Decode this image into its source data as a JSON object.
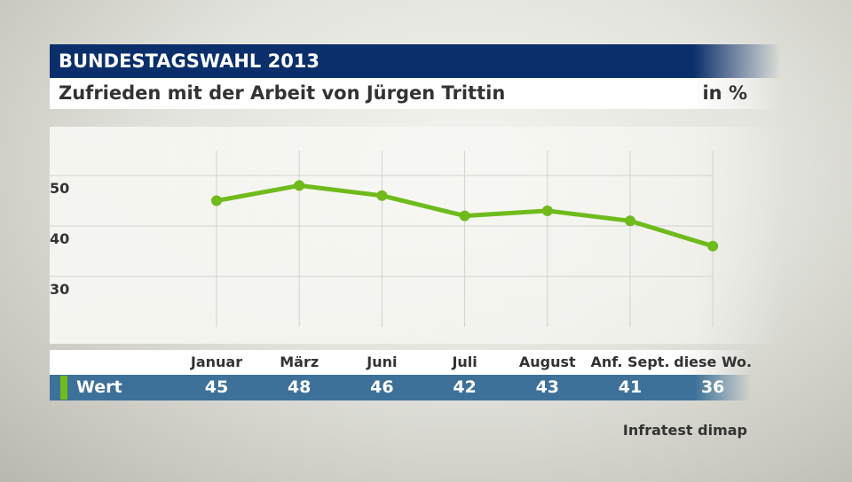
{
  "header": {
    "title": "BUNDESTAGSWAHL 2013",
    "subtitle": "Zufrieden mit der Arbeit von Jürgen Trittin",
    "unit": "in %"
  },
  "chart_data": {
    "type": "line",
    "categories": [
      "Januar",
      "März",
      "Juni",
      "Juli",
      "August",
      "Anf. Sept.",
      "diese Wo."
    ],
    "series": [
      {
        "name": "Wert",
        "values": [
          45,
          48,
          46,
          42,
          43,
          41,
          36
        ],
        "color": "#6fbb1c"
      }
    ],
    "yticks": [
      30,
      40,
      50
    ],
    "grid": true
  },
  "source": "Infratest dimap"
}
